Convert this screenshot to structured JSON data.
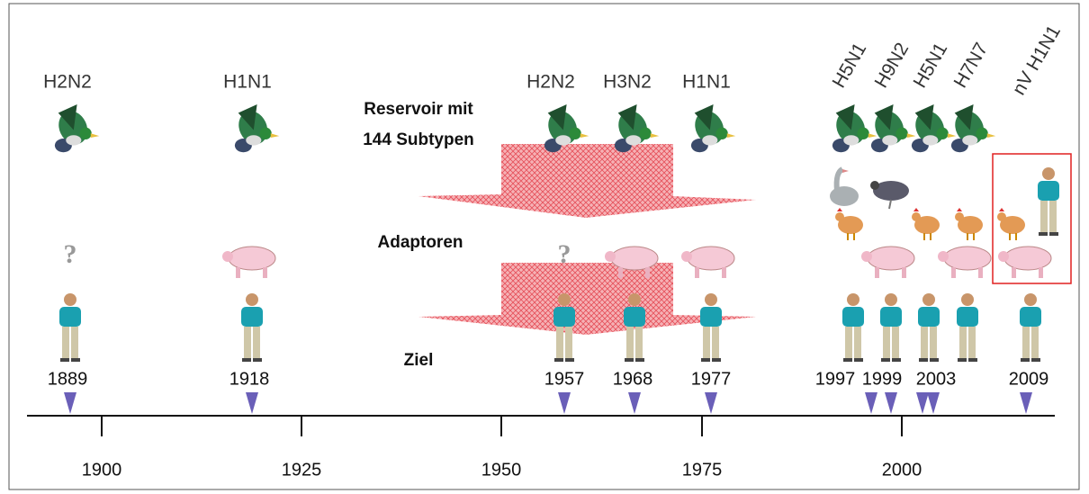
{
  "reservoir": [
    "Reservoir mit",
    "144 Subtypen"
  ],
  "adaptors": "Adaptoren",
  "target": "Ziel",
  "subtypes": [
    "H2N2",
    "H1N1",
    "H2N2",
    "H3N2",
    "H1N1",
    "H5N1",
    "H9N2",
    "H5N1",
    "H7N7",
    "nV H1N1"
  ],
  "years": [
    "1889",
    "1918",
    "1957",
    "1968",
    "1977",
    "1997",
    "1999",
    "2003",
    "2009"
  ],
  "question_marks": [
    "?",
    "?"
  ],
  "axis_ticks": [
    "1900",
    "1925",
    "1950",
    "1975",
    "2000"
  ]
}
